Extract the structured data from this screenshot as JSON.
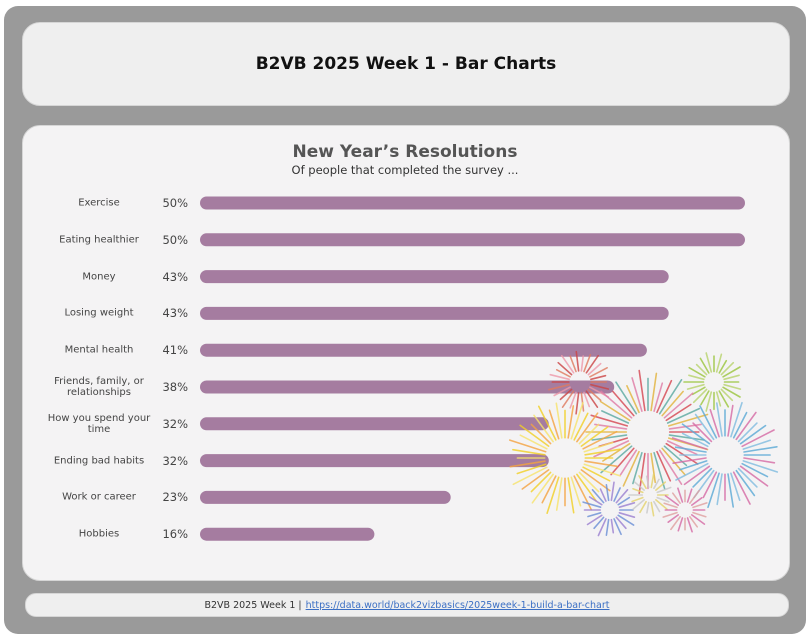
{
  "header": {
    "title": "B2VB 2025 Week 1 - Bar Charts"
  },
  "chart_data": {
    "type": "bar",
    "orientation": "horizontal",
    "title": "New Year’s Resolutions",
    "subtitle": "Of people that completed the survey ...",
    "categories": [
      "Exercise",
      "Eating healthier",
      "Money",
      "Losing weight",
      "Mental health",
      "Friends, family, or relationships",
      "How you spend your time",
      "Ending bad habits",
      "Work or career",
      "Hobbies"
    ],
    "values": [
      50,
      50,
      43,
      43,
      41,
      38,
      32,
      32,
      23,
      16
    ],
    "value_labels": [
      "50%",
      "50%",
      "43%",
      "43%",
      "41%",
      "38%",
      "32%",
      "32%",
      "23%",
      "16%"
    ],
    "unit": "%",
    "bar_color": "#a57ca0",
    "grid": false,
    "legend": "none"
  },
  "footer": {
    "prefix": "B2VB 2025 Week 1 |",
    "link": "https://data.world/back2vizbasics/2025week-1-build-a-bar-chart"
  }
}
